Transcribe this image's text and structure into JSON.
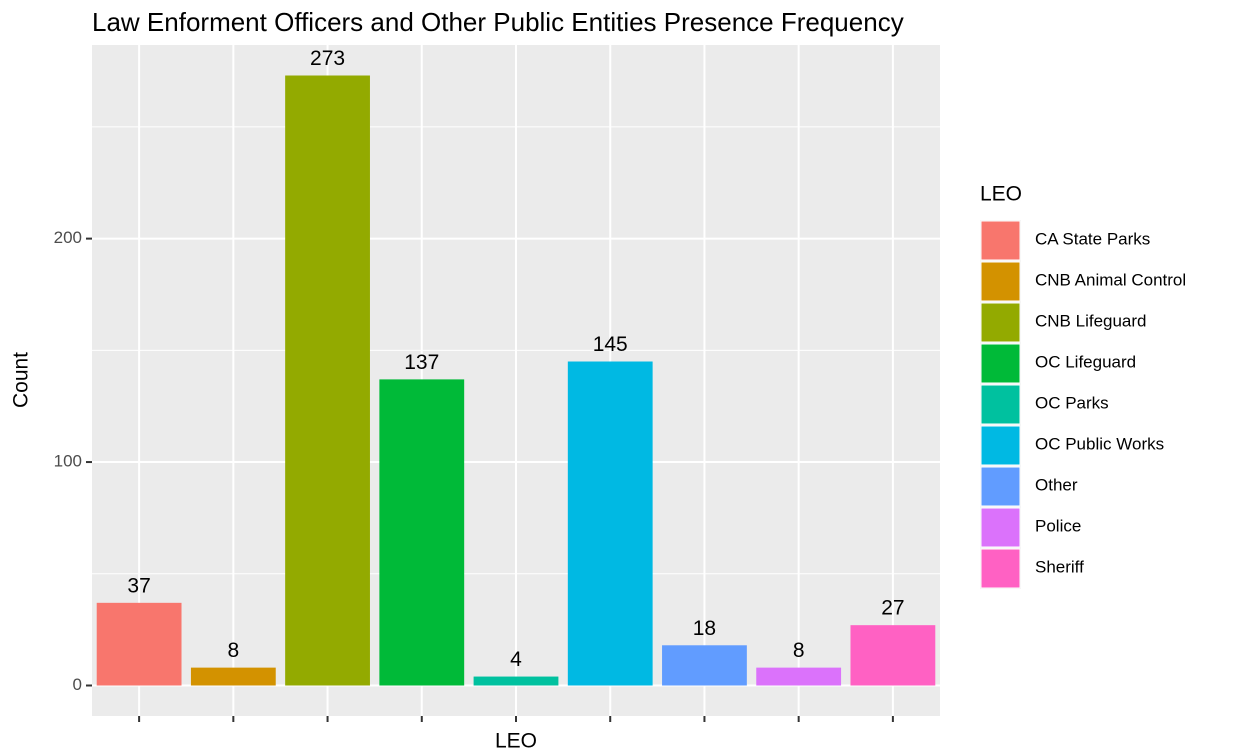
{
  "chart_data": {
    "type": "bar",
    "title": "Law Enforment Officers and Other Public Entities Presence Frequency",
    "x_label": "LEO",
    "y_label": "Count",
    "legend_title": "LEO",
    "categories": [
      "CA State Parks",
      "CNB Animal Control",
      "CNB Lifeguard",
      "OC Lifeguard",
      "OC Parks",
      "OC Public Works",
      "Other",
      "Police",
      "Sheriff"
    ],
    "values": [
      37,
      8,
      273,
      137,
      4,
      145,
      18,
      8,
      27
    ],
    "colors": [
      "#F8766D",
      "#D39200",
      "#93AA00",
      "#00BA38",
      "#00C19F",
      "#00B9E3",
      "#619CFF",
      "#DB72FB",
      "#FF61C3"
    ],
    "ylim": [
      -13.65,
      286.65
    ],
    "yticks": [
      0,
      100,
      200
    ],
    "minor_yticks": [
      50,
      150,
      250
    ],
    "grid": true,
    "legend": "right"
  }
}
